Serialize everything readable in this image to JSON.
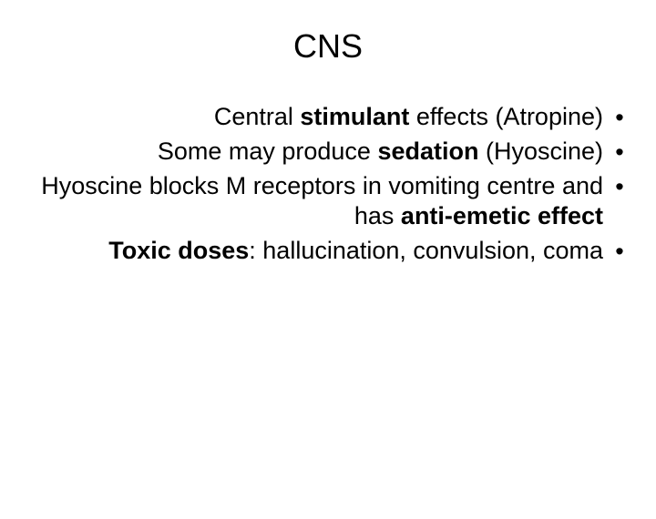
{
  "slide": {
    "title": "CNS",
    "bullets": [
      {
        "parts": [
          {
            "text": "Central ",
            "bold": false
          },
          {
            "text": "stimulant",
            "bold": true
          },
          {
            "text": " effects (Atropine)",
            "bold": false
          }
        ]
      },
      {
        "parts": [
          {
            "text": "Some may produce ",
            "bold": false
          },
          {
            "text": "sedation",
            "bold": true
          },
          {
            "text": " (Hyoscine)",
            "bold": false
          }
        ]
      },
      {
        "parts": [
          {
            "text": "Hyoscine blocks M receptors in vomiting centre and has ",
            "bold": false
          },
          {
            "text": "anti-emetic effect",
            "bold": true
          }
        ]
      },
      {
        "parts": [
          {
            "text": "Toxic doses",
            "bold": true
          },
          {
            "text": ": hallucination, convulsion, coma",
            "bold": false
          }
        ]
      }
    ],
    "bullet_marker": "•",
    "title_fontsize": 36,
    "body_fontsize": 27,
    "text_color": "#000000",
    "background_color": "#ffffff"
  }
}
